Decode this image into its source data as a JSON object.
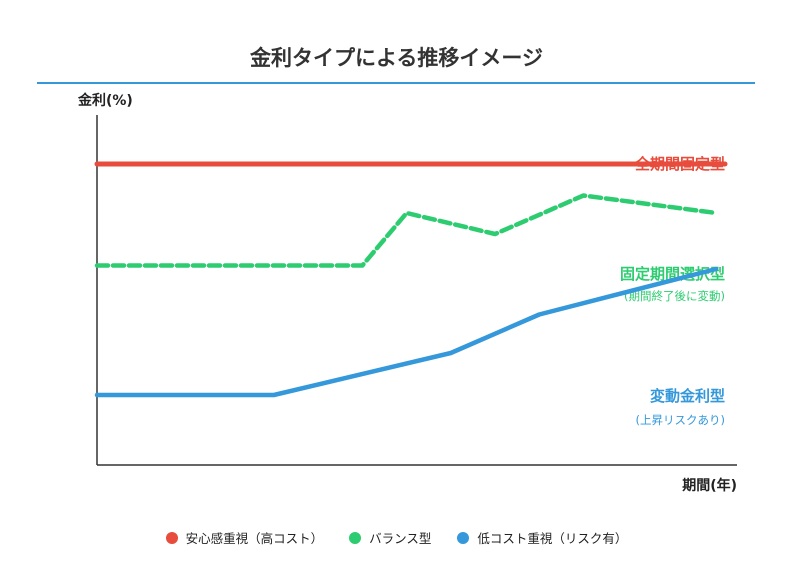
{
  "chart_data": {
    "type": "line",
    "title": "金利タイプによる推移イメージ",
    "xlabel": "期間(年)",
    "ylabel": "金利(%)",
    "xlim": [
      0,
      14.2
    ],
    "ylim": [
      0,
      10
    ],
    "grid": false,
    "legend_placement": "bottom",
    "series": [
      {
        "name": "安心感重視（高コスト）",
        "color": "#e74c3c",
        "style": "solid",
        "x": [
          0,
          14.2
        ],
        "y": [
          8.6,
          8.6
        ],
        "label": "全期間固定型",
        "sublabel": ""
      },
      {
        "name": "バランス型",
        "color": "#2ecc71",
        "style": "dashed",
        "x": [
          0,
          6,
          7,
          9,
          11,
          14
        ],
        "y": [
          5.7,
          5.7,
          7.2,
          6.6,
          7.7,
          7.2
        ],
        "label": "固定期間選択型",
        "sublabel": "(期間終了後に変動)"
      },
      {
        "name": "低コスト重視（リスク有）",
        "color": "#3498db",
        "style": "solid",
        "x": [
          0,
          4,
          8,
          10,
          14
        ],
        "y": [
          2.0,
          2.0,
          3.2,
          4.3,
          5.6
        ],
        "label": "変動金利型",
        "sublabel": "(上昇リスクあり)"
      }
    ]
  }
}
